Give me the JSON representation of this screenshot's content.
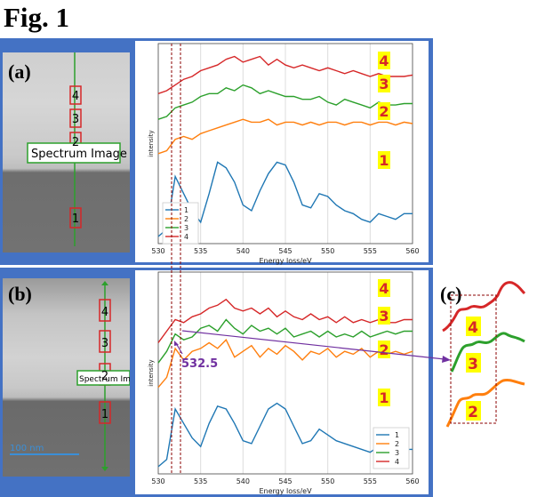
{
  "figure_title": "Fig. 1",
  "panels": {
    "a": {
      "label": "(a)",
      "spectrum_image_label": "Spectrum Image",
      "position_markers": [
        "4",
        "3",
        "2",
        "1"
      ]
    },
    "b": {
      "label": "(b)",
      "spectrum_image_label": "Spectrum Image",
      "position_markers": [
        "4",
        "3",
        "2",
        "1"
      ],
      "scale_bar_label": "100 nm",
      "annotation": "532.5"
    },
    "c": {
      "label": "(c)",
      "curve_labels": [
        "4",
        "3",
        "2"
      ]
    }
  },
  "colors": {
    "series_1": "#1f77b4",
    "series_2": "#ff7f0e",
    "series_3": "#2ca02c",
    "series_4": "#d62728",
    "frame": "#4472c4",
    "marker_box": "#d62728",
    "label_highlight": "#ffff00",
    "label_text": "#d62728",
    "annotation": "#7030a0"
  },
  "chart_data": [
    {
      "type": "line",
      "panel": "a",
      "xlabel": "Energy loss/eV",
      "ylabel": "intensity",
      "xlim": [
        530,
        560
      ],
      "x_ticks": [
        530,
        535,
        540,
        545,
        550,
        555,
        560
      ],
      "grid": true,
      "legend": "bottom-left",
      "series": [
        {
          "name": "1",
          "x": [
            530,
            531,
            532,
            533,
            534,
            535,
            536,
            537,
            538,
            539,
            540,
            541,
            542,
            543,
            544,
            545,
            546,
            547,
            548,
            549,
            550,
            551,
            552,
            553,
            554,
            555,
            556,
            557,
            558,
            559,
            560
          ],
          "values": [
            0.0,
            0.05,
            0.42,
            0.3,
            0.18,
            0.1,
            0.3,
            0.52,
            0.48,
            0.38,
            0.22,
            0.18,
            0.32,
            0.44,
            0.52,
            0.5,
            0.38,
            0.22,
            0.2,
            0.3,
            0.28,
            0.22,
            0.18,
            0.16,
            0.12,
            0.1,
            0.16,
            0.14,
            0.12,
            0.16,
            0.16
          ]
        },
        {
          "name": "2",
          "x": [
            530,
            531,
            532,
            533,
            534,
            535,
            536,
            537,
            538,
            539,
            540,
            541,
            542,
            543,
            544,
            545,
            546,
            547,
            548,
            549,
            550,
            551,
            552,
            553,
            554,
            555,
            556,
            557,
            558,
            559,
            560
          ],
          "values": [
            0.58,
            0.6,
            0.68,
            0.7,
            0.68,
            0.72,
            0.74,
            0.76,
            0.78,
            0.8,
            0.82,
            0.8,
            0.8,
            0.82,
            0.78,
            0.8,
            0.8,
            0.78,
            0.8,
            0.78,
            0.8,
            0.8,
            0.78,
            0.8,
            0.8,
            0.78,
            0.8,
            0.8,
            0.78,
            0.8,
            0.79
          ]
        },
        {
          "name": "3",
          "x": [
            530,
            531,
            532,
            533,
            534,
            535,
            536,
            537,
            538,
            539,
            540,
            541,
            542,
            543,
            544,
            545,
            546,
            547,
            548,
            549,
            550,
            551,
            552,
            553,
            554,
            555,
            556,
            557,
            558,
            559,
            560
          ],
          "values": [
            0.82,
            0.84,
            0.9,
            0.92,
            0.94,
            0.98,
            1.0,
            1.0,
            1.04,
            1.02,
            1.06,
            1.04,
            1.0,
            1.02,
            1.0,
            0.98,
            0.98,
            0.96,
            0.96,
            0.98,
            0.94,
            0.92,
            0.96,
            0.94,
            0.92,
            0.9,
            0.94,
            0.92,
            0.92,
            0.93,
            0.93
          ]
        },
        {
          "name": "4",
          "x": [
            530,
            531,
            532,
            533,
            534,
            535,
            536,
            537,
            538,
            539,
            540,
            541,
            542,
            543,
            544,
            545,
            546,
            547,
            548,
            549,
            550,
            551,
            552,
            553,
            554,
            555,
            556,
            557,
            558,
            559,
            560
          ],
          "values": [
            1.0,
            1.02,
            1.06,
            1.1,
            1.12,
            1.16,
            1.18,
            1.2,
            1.24,
            1.26,
            1.22,
            1.24,
            1.26,
            1.2,
            1.24,
            1.2,
            1.18,
            1.2,
            1.18,
            1.16,
            1.18,
            1.16,
            1.14,
            1.16,
            1.14,
            1.12,
            1.14,
            1.12,
            1.12,
            1.12,
            1.13
          ]
        }
      ],
      "curve_labels": [
        "4",
        "3",
        "2",
        "1"
      ]
    },
    {
      "type": "line",
      "panel": "b",
      "xlabel": "Energy loss/eV",
      "ylabel": "intensity",
      "xlim": [
        530,
        560
      ],
      "x_ticks": [
        530,
        535,
        540,
        545,
        550,
        555,
        560
      ],
      "grid": true,
      "legend": "bottom-right",
      "series": [
        {
          "name": "1",
          "x": [
            530,
            531,
            532,
            533,
            534,
            535,
            536,
            537,
            538,
            539,
            540,
            541,
            542,
            543,
            544,
            545,
            546,
            547,
            548,
            549,
            550,
            551,
            552,
            553,
            554,
            555,
            556,
            557,
            558,
            559,
            560
          ],
          "values": [
            0.0,
            0.05,
            0.4,
            0.3,
            0.2,
            0.14,
            0.3,
            0.42,
            0.4,
            0.3,
            0.18,
            0.16,
            0.28,
            0.4,
            0.44,
            0.4,
            0.28,
            0.16,
            0.18,
            0.26,
            0.22,
            0.18,
            0.16,
            0.14,
            0.12,
            0.1,
            0.14,
            0.12,
            0.1,
            0.12,
            0.12
          ]
        },
        {
          "name": "2",
          "x": [
            530,
            531,
            532,
            533,
            534,
            535,
            536,
            537,
            538,
            539,
            540,
            541,
            542,
            543,
            544,
            545,
            546,
            547,
            548,
            549,
            550,
            551,
            552,
            553,
            554,
            555,
            556,
            557,
            558,
            559,
            560
          ],
          "values": [
            0.55,
            0.62,
            0.82,
            0.74,
            0.8,
            0.82,
            0.86,
            0.82,
            0.88,
            0.76,
            0.8,
            0.84,
            0.76,
            0.82,
            0.78,
            0.84,
            0.8,
            0.74,
            0.8,
            0.78,
            0.82,
            0.76,
            0.8,
            0.78,
            0.82,
            0.76,
            0.8,
            0.78,
            0.8,
            0.78,
            0.8
          ]
        },
        {
          "name": "3",
          "x": [
            530,
            531,
            532,
            533,
            534,
            535,
            536,
            537,
            538,
            539,
            540,
            541,
            542,
            543,
            544,
            545,
            546,
            547,
            548,
            549,
            550,
            551,
            552,
            553,
            554,
            555,
            556,
            557,
            558,
            559,
            560
          ],
          "values": [
            0.72,
            0.8,
            0.92,
            0.88,
            0.9,
            0.96,
            0.98,
            0.94,
            1.02,
            0.96,
            0.92,
            0.98,
            0.94,
            0.96,
            0.92,
            0.96,
            0.9,
            0.92,
            0.94,
            0.9,
            0.94,
            0.9,
            0.92,
            0.9,
            0.94,
            0.9,
            0.92,
            0.94,
            0.92,
            0.94,
            0.94
          ]
        },
        {
          "name": "4",
          "x": [
            530,
            531,
            532,
            533,
            534,
            535,
            536,
            537,
            538,
            539,
            540,
            541,
            542,
            543,
            544,
            545,
            546,
            547,
            548,
            549,
            550,
            551,
            552,
            553,
            554,
            555,
            556,
            557,
            558,
            559,
            560
          ],
          "values": [
            0.86,
            0.94,
            1.02,
            1.0,
            1.04,
            1.06,
            1.1,
            1.12,
            1.16,
            1.1,
            1.08,
            1.1,
            1.06,
            1.1,
            1.04,
            1.08,
            1.04,
            1.02,
            1.06,
            1.02,
            1.04,
            1.0,
            1.04,
            1.0,
            1.02,
            1.0,
            1.02,
            1.0,
            1.0,
            1.02,
            1.02
          ]
        }
      ],
      "curve_labels": [
        "4",
        "3",
        "2",
        "1"
      ]
    }
  ]
}
